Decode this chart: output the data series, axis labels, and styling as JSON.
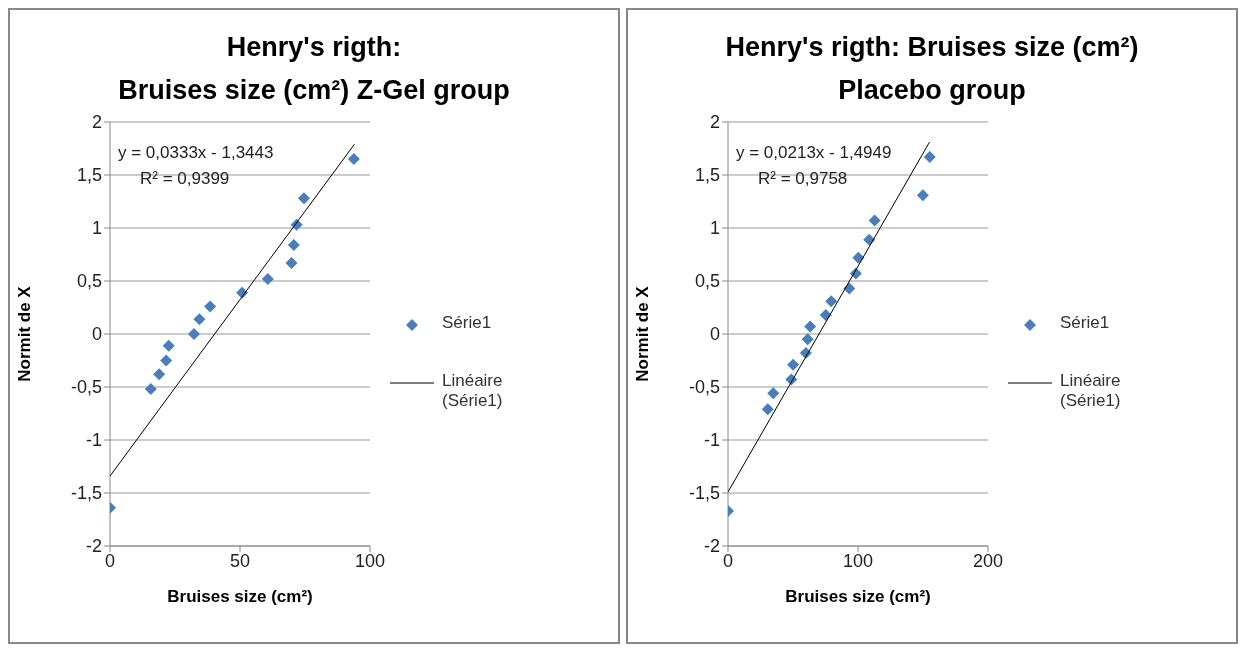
{
  "chart_data": [
    {
      "type": "scatter",
      "title": "Henry's rigth:\nBruises size (cm²) Z-Gel group",
      "xlabel": "Bruises size (cm²)",
      "ylabel": "Normit de X",
      "xlim": [
        0,
        100
      ],
      "xticks": [
        0,
        50,
        100
      ],
      "ylim": [
        -2,
        2
      ],
      "yticks": [
        {
          "value": -2,
          "label": "-2"
        },
        {
          "value": -1.5,
          "label": "-1,5"
        },
        {
          "value": -1,
          "label": "-1"
        },
        {
          "value": -0.5,
          "label": "-0,5"
        },
        0,
        {
          "value": 0.5,
          "label": "0,5"
        },
        1,
        {
          "value": 1.5,
          "label": "1,5"
        },
        2
      ],
      "grid": "y",
      "legend": "right",
      "marker": "diamond",
      "annotations": [
        "y = 0,0333x - 1,3443",
        "R² = 0,9399"
      ],
      "series": [
        {
          "name": "Série1",
          "color": "#4a7ebb",
          "x": [
            0,
            15.7,
            18.9,
            21.6,
            22.6,
            32.3,
            34.4,
            38.5,
            50.8,
            60.7,
            69.8,
            70.7,
            71.8,
            74.6,
            93.8
          ],
          "values": [
            -1.64,
            -0.52,
            -0.38,
            -0.25,
            -0.11,
            0.0,
            0.14,
            0.26,
            0.39,
            0.52,
            0.67,
            0.84,
            1.03,
            1.28,
            1.65
          ]
        },
        {
          "name": "Linéaire (Série1)",
          "type": "line",
          "color": "#000000",
          "marker": "none",
          "x": [
            0,
            94
          ],
          "values": [
            -1.34,
            1.79
          ]
        }
      ]
    },
    {
      "type": "scatter",
      "title": "Henry's rigth: Bruises size (cm²)\nPlacebo group",
      "xlabel": "Bruises size (cm²)",
      "ylabel": "Normit de X",
      "xlim": [
        0,
        200
      ],
      "xticks": [
        0,
        100,
        200
      ],
      "ylim": [
        -2,
        2
      ],
      "yticks": [
        {
          "value": -2,
          "label": "-2"
        },
        {
          "value": -1.5,
          "label": "-1,5"
        },
        {
          "value": -1,
          "label": "-1"
        },
        {
          "value": -0.5,
          "label": "-0,5"
        },
        0,
        {
          "value": 0.5,
          "label": "0,5"
        },
        1,
        {
          "value": 1.5,
          "label": "1,5"
        },
        2
      ],
      "grid": "y",
      "legend": "right",
      "marker": "diamond",
      "annotations": [
        "y = 0,0213x - 1,4949",
        "R² = 0,9758"
      ],
      "series": [
        {
          "name": "Série1",
          "color": "#4a7ebb",
          "x": [
            0,
            30.6,
            34.8,
            48.7,
            50.1,
            59.9,
            61.3,
            63.2,
            75.2,
            79.4,
            93.3,
            98.3,
            100.3,
            108.6,
            112.8,
            149.9,
            155.2
          ],
          "values": [
            -1.67,
            -0.71,
            -0.56,
            -0.43,
            -0.29,
            -0.18,
            -0.05,
            0.07,
            0.18,
            0.31,
            0.43,
            0.57,
            0.72,
            0.89,
            1.07,
            1.31,
            1.67
          ]
        },
        {
          "name": "Linéaire (Série1)",
          "type": "line",
          "color": "#000000",
          "marker": "none",
          "x": [
            0,
            155
          ],
          "values": [
            -1.49,
            1.81
          ]
        }
      ]
    }
  ]
}
